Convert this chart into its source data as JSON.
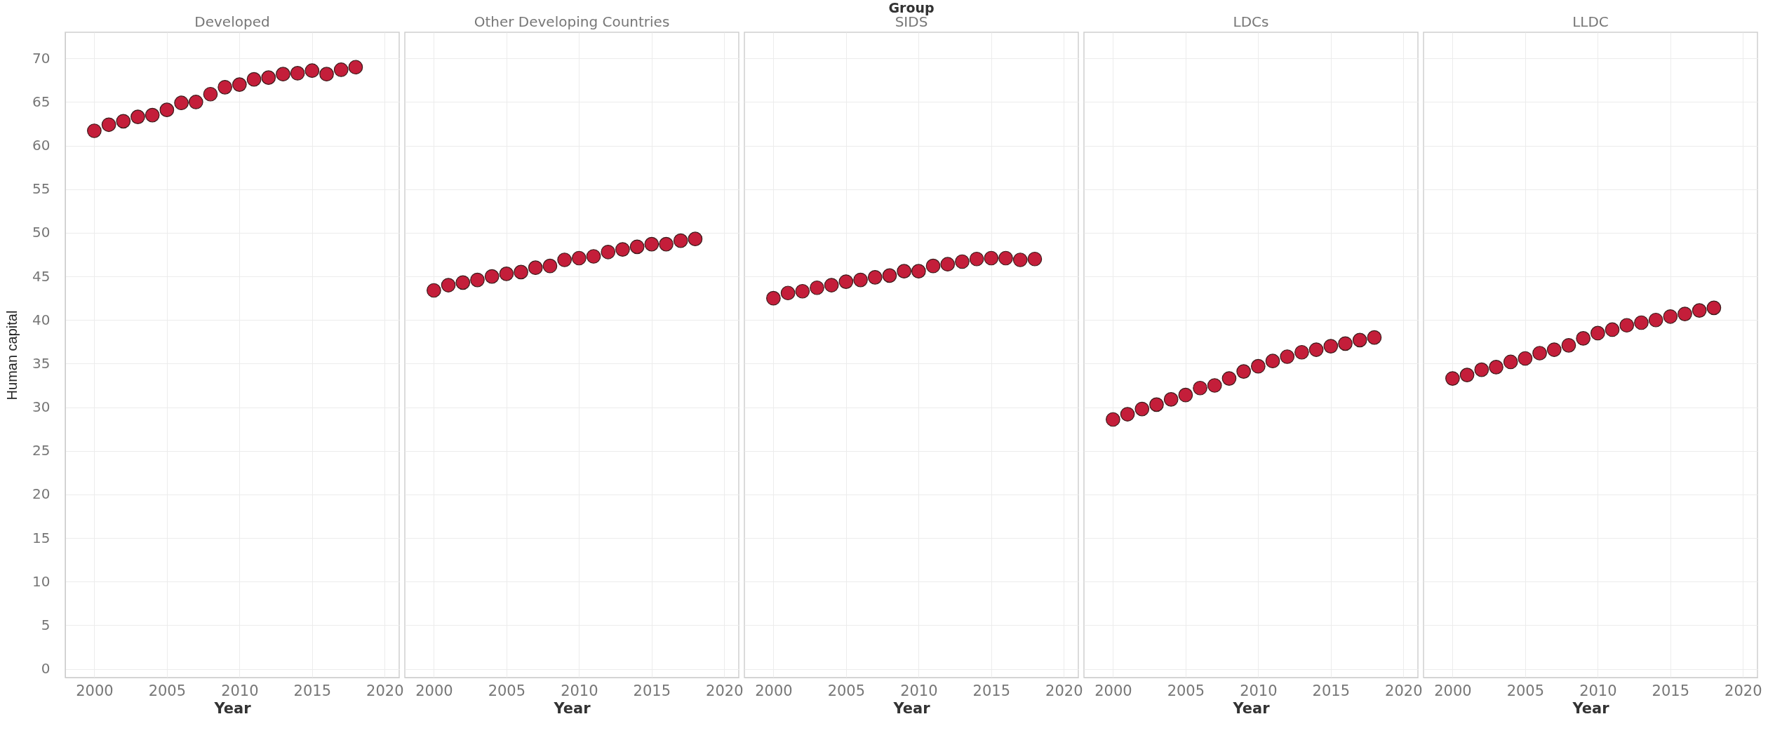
{
  "chart_data": [
    {
      "type": "scatter",
      "title": "Developed",
      "xlabel": "Year",
      "ylabel": "Human capital",
      "x": [
        2000,
        2001,
        2002,
        2003,
        2004,
        2005,
        2006,
        2007,
        2008,
        2009,
        2010,
        2011,
        2012,
        2013,
        2014,
        2015,
        2016,
        2017,
        2018
      ],
      "series": [
        {
          "color": "#c41e3a",
          "values": [
            61.7,
            62.4,
            62.8,
            63.3,
            63.5,
            64.1,
            64.9,
            65.0,
            65.9,
            66.7,
            67.0,
            67.6,
            67.8,
            68.2,
            68.3,
            68.6,
            68.2,
            68.7,
            69.0
          ]
        }
      ],
      "xlim": [
        1998,
        2021
      ],
      "xticks": [
        2000,
        2005,
        2010,
        2015,
        2020
      ],
      "ylim": [
        -1,
        73
      ],
      "yticks": [
        0,
        5,
        10,
        15,
        20,
        25,
        30,
        35,
        40,
        45,
        50,
        55,
        60,
        65,
        70
      ],
      "grid": true,
      "marker": "circle"
    },
    {
      "type": "scatter",
      "title": "Other Developing Countries",
      "xlabel": "Year",
      "x": [
        2000,
        2001,
        2002,
        2003,
        2004,
        2005,
        2006,
        2007,
        2008,
        2009,
        2010,
        2011,
        2012,
        2013,
        2014,
        2015,
        2016,
        2017,
        2018
      ],
      "series": [
        {
          "color": "#c41e3a",
          "values": [
            43.4,
            44.0,
            44.3,
            44.6,
            45.0,
            45.3,
            45.5,
            46.0,
            46.2,
            46.9,
            47.1,
            47.3,
            47.8,
            48.1,
            48.4,
            48.7,
            48.7,
            49.1,
            49.3
          ]
        }
      ],
      "xlim": [
        1998,
        2021
      ],
      "xticks": [
        2000,
        2005,
        2010,
        2015,
        2020
      ],
      "ylim": [
        -1,
        73
      ],
      "yticks": [
        0,
        5,
        10,
        15,
        20,
        25,
        30,
        35,
        40,
        45,
        50,
        55,
        60,
        65,
        70
      ],
      "grid": true,
      "marker": "circle",
      "tick_labels": "x"
    },
    {
      "type": "scatter",
      "title": "SIDS",
      "xlabel": "Year",
      "annotations": [
        "Group"
      ],
      "x": [
        2000,
        2001,
        2002,
        2003,
        2004,
        2005,
        2006,
        2007,
        2008,
        2009,
        2010,
        2011,
        2012,
        2013,
        2014,
        2015,
        2016,
        2017,
        2018
      ],
      "series": [
        {
          "color": "#c41e3a",
          "values": [
            42.5,
            43.1,
            43.3,
            43.7,
            44.0,
            44.4,
            44.6,
            44.9,
            45.1,
            45.6,
            45.6,
            46.2,
            46.4,
            46.7,
            47.0,
            47.1,
            47.1,
            46.9,
            47.0
          ]
        }
      ],
      "xlim": [
        1998,
        2021
      ],
      "xticks": [
        2000,
        2005,
        2010,
        2015,
        2020
      ],
      "ylim": [
        -1,
        73
      ],
      "yticks": [
        0,
        5,
        10,
        15,
        20,
        25,
        30,
        35,
        40,
        45,
        50,
        55,
        60,
        65,
        70
      ],
      "grid": true,
      "marker": "circle",
      "tick_labels": "x"
    },
    {
      "type": "scatter",
      "title": "LDCs",
      "xlabel": "Year",
      "x": [
        2000,
        2001,
        2002,
        2003,
        2004,
        2005,
        2006,
        2007,
        2008,
        2009,
        2010,
        2011,
        2012,
        2013,
        2014,
        2015,
        2016,
        2017,
        2018
      ],
      "series": [
        {
          "color": "#c41e3a",
          "values": [
            28.6,
            29.2,
            29.8,
            30.3,
            30.9,
            31.4,
            32.2,
            32.5,
            33.3,
            34.1,
            34.7,
            35.3,
            35.8,
            36.3,
            36.6,
            37.0,
            37.3,
            37.7,
            38.0
          ]
        }
      ],
      "xlim": [
        1998,
        2021
      ],
      "xticks": [
        2000,
        2005,
        2010,
        2015,
        2020
      ],
      "ylim": [
        -1,
        73
      ],
      "yticks": [
        0,
        5,
        10,
        15,
        20,
        25,
        30,
        35,
        40,
        45,
        50,
        55,
        60,
        65,
        70
      ],
      "grid": true,
      "marker": "circle",
      "tick_labels": "x"
    },
    {
      "type": "scatter",
      "title": "LLDC",
      "xlabel": "Year",
      "x": [
        2000,
        2001,
        2002,
        2003,
        2004,
        2005,
        2006,
        2007,
        2008,
        2009,
        2010,
        2011,
        2012,
        2013,
        2014,
        2015,
        2016,
        2017,
        2018
      ],
      "series": [
        {
          "color": "#c41e3a",
          "values": [
            33.3,
            33.7,
            34.3,
            34.6,
            35.2,
            35.6,
            36.2,
            36.6,
            37.1,
            37.9,
            38.5,
            38.9,
            39.4,
            39.7,
            40.0,
            40.4,
            40.7,
            41.1,
            41.4
          ]
        }
      ],
      "xlim": [
        1998,
        2021
      ],
      "xticks": [
        2000,
        2005,
        2010,
        2015,
        2020
      ],
      "ylim": [
        -1,
        73
      ],
      "yticks": [
        0,
        5,
        10,
        15,
        20,
        25,
        30,
        35,
        40,
        45,
        50,
        55,
        60,
        65,
        70
      ],
      "grid": true,
      "marker": "circle",
      "tick_labels": "x"
    }
  ]
}
